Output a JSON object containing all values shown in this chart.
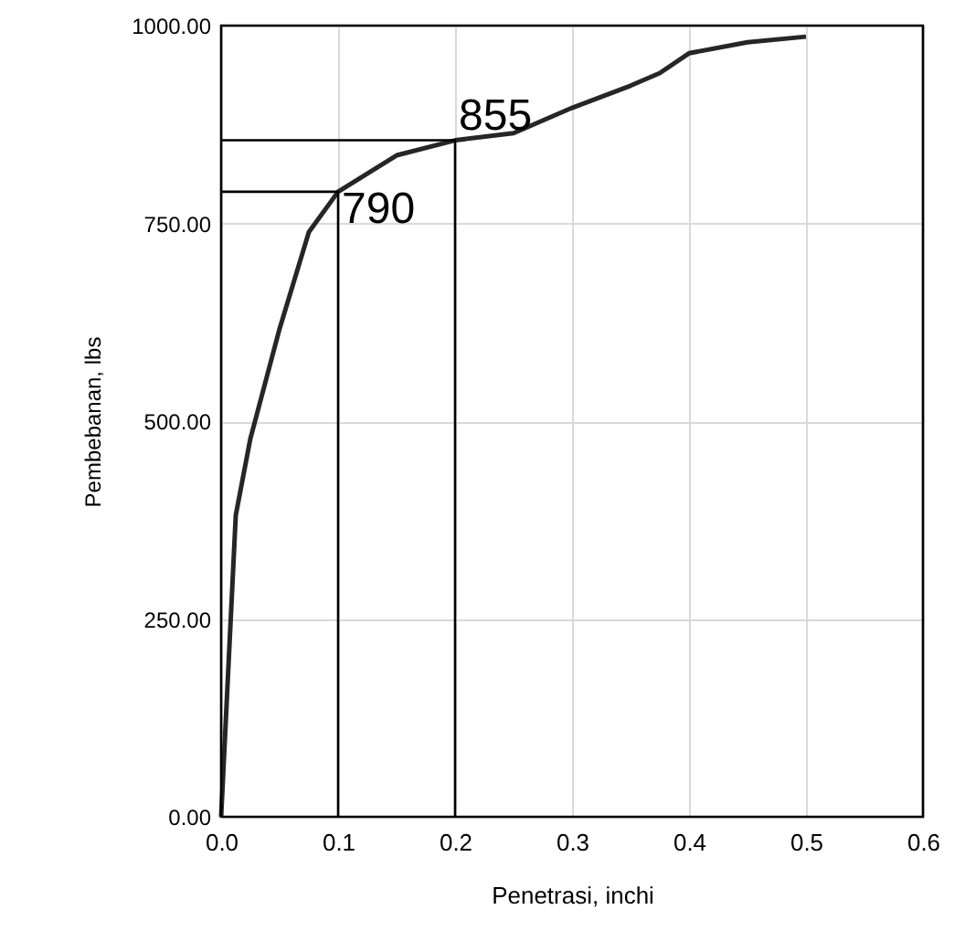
{
  "chart_data": {
    "type": "line",
    "xlabel": "Penetrasi, inchi",
    "ylabel": "Pembebanan, lbs",
    "xlim": [
      0,
      0.6
    ],
    "ylim": [
      0,
      1000
    ],
    "xticks": [
      {
        "value": 0,
        "label": "0.0"
      },
      {
        "value": 0.1,
        "label": "0.1"
      },
      {
        "value": 0.2,
        "label": "0.2"
      },
      {
        "value": 0.3,
        "label": "0.3"
      },
      {
        "value": 0.4,
        "label": "0.4"
      },
      {
        "value": 0.5,
        "label": "0.5"
      },
      {
        "value": 0.6,
        "label": "0.6"
      }
    ],
    "yticks": [
      {
        "value": 0,
        "label": "0.00"
      },
      {
        "value": 250,
        "label": "250.00"
      },
      {
        "value": 500,
        "label": "500.00"
      },
      {
        "value": 750,
        "label": "750.00"
      },
      {
        "value": 1000,
        "label": "1000.00"
      }
    ],
    "grid": true,
    "marker": "none",
    "line_style": "solid",
    "series": [
      {
        "color": "#262626",
        "x": [
          0,
          0.0125,
          0.025,
          0.05,
          0.075,
          0.1,
          0.15,
          0.2,
          0.25,
          0.3,
          0.35,
          0.375,
          0.4,
          0.45,
          0.5
        ],
        "values": [
          0,
          381,
          478,
          617,
          739,
          790,
          836,
          855,
          864,
          896,
          924,
          940,
          965,
          979,
          986
        ]
      },
      {
        "color": "#000000",
        "x": [
          0,
          0.1,
          0.1
        ],
        "values": [
          790,
          790,
          0
        ]
      },
      {
        "color": "#000000",
        "x": [
          0,
          0.2,
          0.2
        ],
        "values": [
          855,
          855,
          0
        ]
      }
    ],
    "annotations": [
      {
        "text": "790",
        "x": 0.1,
        "y": 790
      },
      {
        "text": "855",
        "x": 0.2,
        "y": 855
      }
    ]
  }
}
